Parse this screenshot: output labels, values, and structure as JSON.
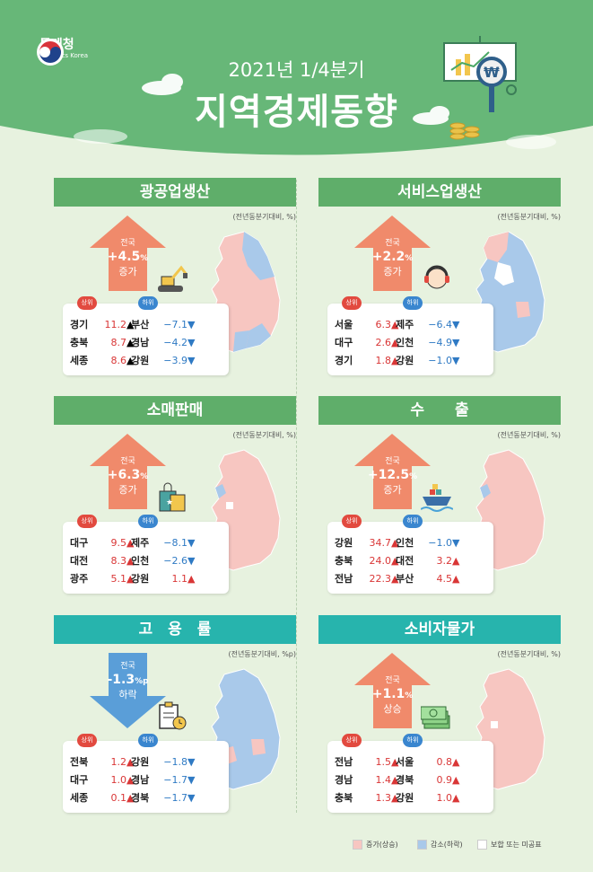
{
  "header": {
    "logo_name": "통계청",
    "logo_sub": "Statistics Korea",
    "subtitle": "2021년 1/4분기",
    "title": "지역경제동향"
  },
  "colors": {
    "increase": "#f7c6c1",
    "decrease": "#a9c9ea",
    "neutral": "#ffffff",
    "banner_green": "#5fae6a",
    "banner_teal": "#27b4ad"
  },
  "panels": [
    {
      "title": "광공업생산",
      "unit": "(전년동분기대비, %)",
      "nat_label": "전국",
      "nat_value": "+4.5",
      "nat_unit": "%",
      "nat_dir": "증가",
      "top_label": "상위",
      "bottom_label": "하위",
      "top": [
        {
          "name": "경기",
          "value": "11.2"
        },
        {
          "name": "충북",
          "value": "8.7"
        },
        {
          "name": "세종",
          "value": "8.6"
        }
      ],
      "bottom": [
        {
          "name": "부산",
          "value": "−7.1"
        },
        {
          "name": "경남",
          "value": "−4.2"
        },
        {
          "name": "강원",
          "value": "−3.9"
        }
      ],
      "icon": "excavator-icon"
    },
    {
      "title": "서비스업생산",
      "unit": "(전년동분기대비, %)",
      "nat_label": "전국",
      "nat_value": "+2.2",
      "nat_unit": "%",
      "nat_dir": "증가",
      "top_label": "상위",
      "bottom_label": "하위",
      "top": [
        {
          "name": "서울",
          "value": "6.3"
        },
        {
          "name": "대구",
          "value": "2.6"
        },
        {
          "name": "경기",
          "value": "1.8"
        }
      ],
      "bottom": [
        {
          "name": "제주",
          "value": "−6.4"
        },
        {
          "name": "인천",
          "value": "−4.9"
        },
        {
          "name": "강원",
          "value": "−1.0"
        }
      ],
      "icon": "headset-agent-icon"
    },
    {
      "title": "소매판매",
      "unit": "(전년동분기대비, %)",
      "nat_label": "전국",
      "nat_value": "+6.3",
      "nat_unit": "%",
      "nat_dir": "증가",
      "top_label": "상위",
      "bottom_label": "하위",
      "top": [
        {
          "name": "대구",
          "value": "9.5"
        },
        {
          "name": "대전",
          "value": "8.3"
        },
        {
          "name": "광주",
          "value": "5.1"
        }
      ],
      "bottom": [
        {
          "name": "제주",
          "value": "−8.1"
        },
        {
          "name": "인천",
          "value": "−2.6"
        },
        {
          "name": "강원",
          "value": "1.1"
        }
      ],
      "icon": "shopping-bag-icon"
    },
    {
      "title": "수　　출",
      "unit": "(전년동분기대비, %)",
      "nat_label": "전국",
      "nat_value": "+12.5",
      "nat_unit": "%",
      "nat_dir": "증가",
      "top_label": "상위",
      "bottom_label": "하위",
      "top": [
        {
          "name": "강원",
          "value": "34.7"
        },
        {
          "name": "충북",
          "value": "24.0"
        },
        {
          "name": "전남",
          "value": "22.3"
        }
      ],
      "bottom": [
        {
          "name": "인천",
          "value": "−1.0"
        },
        {
          "name": "대전",
          "value": "3.2"
        },
        {
          "name": "부산",
          "value": "4.5"
        }
      ],
      "icon": "cargo-ship-icon"
    },
    {
      "title": "고　용　률",
      "unit": "(전년동분기대비, %p)",
      "nat_label": "전국",
      "nat_value": "-1.3",
      "nat_unit": "%p",
      "nat_dir": "하락",
      "top_label": "상위",
      "bottom_label": "하위",
      "top": [
        {
          "name": "전북",
          "value": "1.2"
        },
        {
          "name": "대구",
          "value": "1.0"
        },
        {
          "name": "세종",
          "value": "0.1"
        }
      ],
      "bottom": [
        {
          "name": "강원",
          "value": "−1.8"
        },
        {
          "name": "경남",
          "value": "−1.7"
        },
        {
          "name": "경북",
          "value": "−1.7"
        }
      ],
      "icon": "clipboard-clock-icon"
    },
    {
      "title": "소비자물가",
      "unit": "(전년동분기대비, %)",
      "nat_label": "전국",
      "nat_value": "+1.1",
      "nat_unit": "%",
      "nat_dir": "상승",
      "top_label": "상위",
      "bottom_label": "하위",
      "top": [
        {
          "name": "전남",
          "value": "1.5"
        },
        {
          "name": "경남",
          "value": "1.4"
        },
        {
          "name": "충북",
          "value": "1.3"
        }
      ],
      "bottom": [
        {
          "name": "서울",
          "value": "0.8"
        },
        {
          "name": "경북",
          "value": "0.9"
        },
        {
          "name": "강원",
          "value": "1.0"
        }
      ],
      "icon": "money-stack-icon"
    }
  ],
  "legend": {
    "increase": "증가(상승)",
    "decrease": "감소(하락)",
    "neutral": "보합 또는 미공표"
  }
}
